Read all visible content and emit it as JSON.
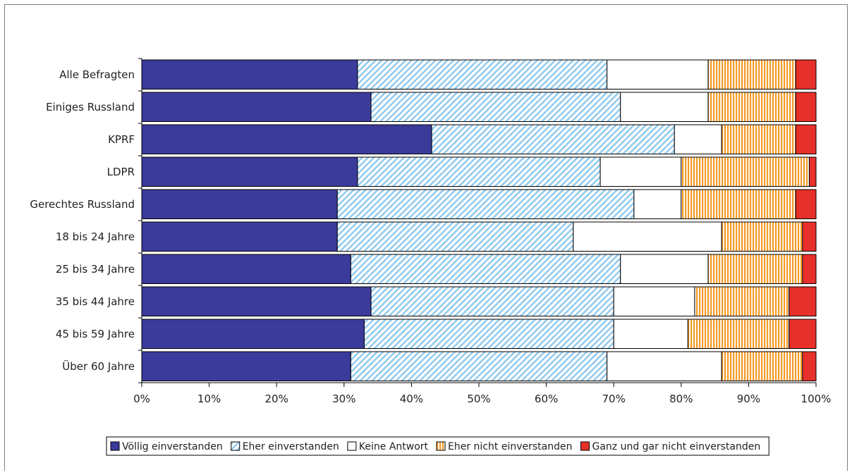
{
  "chart_data": {
    "type": "bar",
    "orientation": "horizontal",
    "stacked": true,
    "categories": [
      "Alle Befragten",
      "Einiges Russland",
      "KPRF",
      "LDPR",
      "Gerechtes Russland",
      "18 bis 24 Jahre",
      "25 bis 34 Jahre",
      "35 bis 44 Jahre",
      "45 bis 59 Jahre",
      "Über 60 Jahre"
    ],
    "series": [
      {
        "name": "Völlig einverstanden",
        "values": [
          32,
          34,
          43,
          32,
          29,
          29,
          31,
          34,
          33,
          31
        ],
        "color": "#3b3b9c",
        "pattern": "solid"
      },
      {
        "name": "Eher einverstanden",
        "values": [
          37,
          37,
          36,
          36,
          44,
          35,
          40,
          36,
          37,
          38
        ],
        "color": "#8ec8ee",
        "pattern": "diagonal"
      },
      {
        "name": "Keine Antwort",
        "values": [
          15,
          13,
          7,
          12,
          7,
          22,
          13,
          12,
          11,
          17
        ],
        "color": "#ffffff",
        "pattern": "solid"
      },
      {
        "name": "Eher nicht einverstanden",
        "values": [
          13,
          13,
          11,
          19,
          17,
          12,
          14,
          14,
          15,
          12
        ],
        "color": "#f39a25",
        "pattern": "vertical"
      },
      {
        "name": "Ganz und gar nicht einverstanden",
        "values": [
          3,
          3,
          3,
          1,
          3,
          2,
          2,
          4,
          4,
          2
        ],
        "color": "#e8302a",
        "pattern": "solid"
      }
    ],
    "x_ticks": [
      "0%",
      "10%",
      "20%",
      "30%",
      "40%",
      "50%",
      "60%",
      "70%",
      "80%",
      "90%",
      "100%"
    ],
    "xlim": [
      0,
      100
    ],
    "legend": "bottom",
    "grid": false
  }
}
